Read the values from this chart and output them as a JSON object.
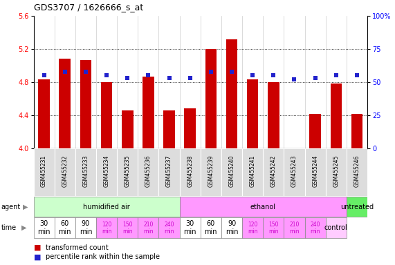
{
  "title": "GDS3707 / 1626666_s_at",
  "samples": [
    "GSM455231",
    "GSM455232",
    "GSM455233",
    "GSM455234",
    "GSM455235",
    "GSM455236",
    "GSM455237",
    "GSM455238",
    "GSM455239",
    "GSM455240",
    "GSM455241",
    "GSM455242",
    "GSM455243",
    "GSM455244",
    "GSM455245",
    "GSM455246"
  ],
  "bar_values": [
    4.83,
    5.08,
    5.07,
    4.8,
    4.46,
    4.87,
    4.46,
    4.48,
    5.2,
    5.32,
    4.83,
    4.8,
    3.87,
    4.42,
    4.78,
    4.42
  ],
  "percentile_values": [
    55,
    58,
    58,
    55,
    53,
    55,
    53,
    53,
    58,
    58,
    55,
    55,
    52,
    53,
    55,
    55
  ],
  "ylim": [
    4.0,
    5.6
  ],
  "yticks_left": [
    4.0,
    4.4,
    4.8,
    5.2,
    5.6
  ],
  "yticks_right": [
    0,
    25,
    50,
    75,
    100
  ],
  "bar_color": "#cc0000",
  "dot_color": "#2222cc",
  "bar_base": 4.0,
  "agent_groups": [
    {
      "label": "humidified air",
      "start": 0,
      "end": 7,
      "color": "#ccffcc"
    },
    {
      "label": "ethanol",
      "start": 7,
      "end": 15,
      "color": "#ff99ff"
    },
    {
      "label": "untreated",
      "start": 15,
      "end": 16,
      "color": "#66ee66"
    }
  ],
  "time_labels_air": [
    "30\nmin",
    "60\nmin",
    "90\nmin",
    "120\nmin",
    "150\nmin",
    "210\nmin",
    "240\nmin"
  ],
  "time_labels_eth": [
    "30\nmin",
    "60\nmin",
    "90\nmin",
    "120\nmin",
    "150\nmin",
    "210\nmin",
    "240\nmin"
  ],
  "time_colors_air": [
    "#ffffff",
    "#ffffff",
    "#ffffff",
    "#ff99ff",
    "#ff99ff",
    "#ff99ff",
    "#ff99ff"
  ],
  "time_colors_eth": [
    "#ffffff",
    "#ffffff",
    "#ffffff",
    "#ff99ff",
    "#ff99ff",
    "#ff99ff",
    "#ff99ff"
  ],
  "time_color_control": "#ffccff",
  "dotted_lines": [
    4.4,
    4.8,
    5.2
  ],
  "bg_color": "#ffffff",
  "plot_bg": "#ffffff",
  "xticklabel_bg": "#dddddd"
}
